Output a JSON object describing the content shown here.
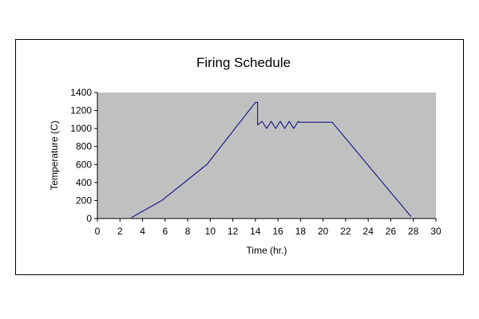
{
  "chart_data": {
    "type": "line",
    "title": "Firing Schedule",
    "xlabel": "Time (hr.)",
    "ylabel": "Temperature (C)",
    "xlim": [
      0,
      30
    ],
    "ylim": [
      0,
      1400
    ],
    "x_ticks": [
      "0",
      "2",
      "4",
      "6",
      "8",
      "10",
      "12",
      "14",
      "16",
      "18",
      "20",
      "22",
      "24",
      "26",
      "28",
      "30"
    ],
    "y_ticks": [
      "0",
      "200",
      "400",
      "600",
      "800",
      "1000",
      "1200",
      "1400"
    ],
    "grid": false,
    "legend": "none",
    "series": [
      {
        "color": "#000080",
        "x": [
          3.0,
          5.7,
          9.7,
          14.0,
          14.2,
          14.2,
          14.6,
          15.0,
          15.4,
          15.8,
          16.2,
          16.6,
          17.0,
          17.4,
          17.8,
          17.9,
          20.8,
          27.8
        ],
        "y": [
          10,
          200,
          600,
          1290,
          1290,
          1040,
          1080,
          1000,
          1080,
          1000,
          1080,
          1000,
          1080,
          1000,
          1080,
          1070,
          1070,
          20
        ]
      }
    ]
  },
  "colors": {
    "plot_background": "#c0c0c0",
    "series_line": "#000080"
  }
}
